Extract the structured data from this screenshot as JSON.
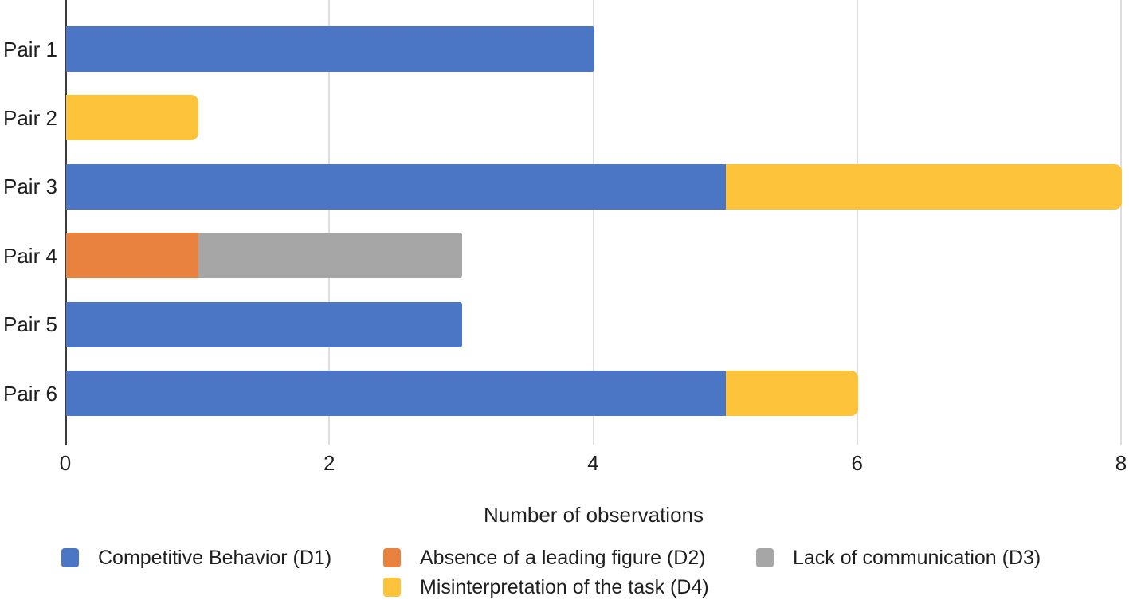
{
  "chart_data": {
    "type": "bar",
    "orientation": "horizontal",
    "stacked": true,
    "title": "",
    "xlabel": "Number of observations",
    "ylabel": "",
    "xlim": [
      0,
      8
    ],
    "xticks": [
      0,
      2,
      4,
      6,
      8
    ],
    "grid": "vertical-light",
    "legend_position": "bottom",
    "categories": [
      "Pair 1",
      "Pair 2",
      "Pair 3",
      "Pair 4",
      "Pair 5",
      "Pair 6"
    ],
    "series": [
      {
        "name": "Competitive Behavior (D1)",
        "color": "#4B76C6",
        "values": [
          4,
          0,
          5,
          0,
          3,
          5
        ]
      },
      {
        "name": "Absence of a leading figure (D2)",
        "color": "#E8823E",
        "values": [
          0,
          0,
          0,
          1,
          0,
          0
        ]
      },
      {
        "name": "Lack of communication (D3)",
        "color": "#A6A6A6",
        "values": [
          0,
          0,
          0,
          2,
          0,
          0
        ]
      },
      {
        "name": "Misinterpretation of the task (D4)",
        "color": "#FCC33B",
        "values": [
          0,
          1,
          3,
          0,
          0,
          1
        ]
      }
    ],
    "colors": {
      "axis_line": "#3c3c3c",
      "gridline": "#dedede",
      "text": "#1f1f1f",
      "background": "#ffffff"
    }
  }
}
